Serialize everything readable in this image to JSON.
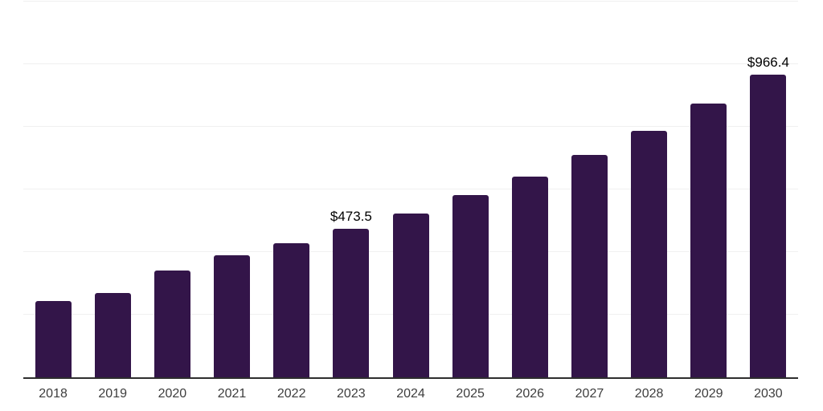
{
  "chart_data": {
    "type": "bar",
    "title": "",
    "xlabel": "",
    "ylabel": "",
    "categories": [
      "2018",
      "2019",
      "2020",
      "2021",
      "2022",
      "2023",
      "2024",
      "2025",
      "2026",
      "2027",
      "2028",
      "2029",
      "2030"
    ],
    "values": [
      244,
      268,
      341,
      390,
      428,
      473.5,
      523,
      582,
      641,
      710,
      787,
      874,
      966.4
    ],
    "value_labels": [
      "",
      "",
      "",
      "",
      "",
      "$473.5",
      "",
      "",
      "",
      "",
      "",
      "",
      "$966.4"
    ],
    "ylim": [
      0,
      1200
    ],
    "grid": {
      "horizontal": true,
      "step": 200
    },
    "legend": {
      "visible": false
    },
    "colors": {
      "bar": "#331549",
      "axis_line": "#2e2e2e",
      "gridline": "#f0f0f0",
      "tick_label": "#3d3d3d",
      "data_label": "#000000",
      "background": "#ffffff"
    }
  }
}
